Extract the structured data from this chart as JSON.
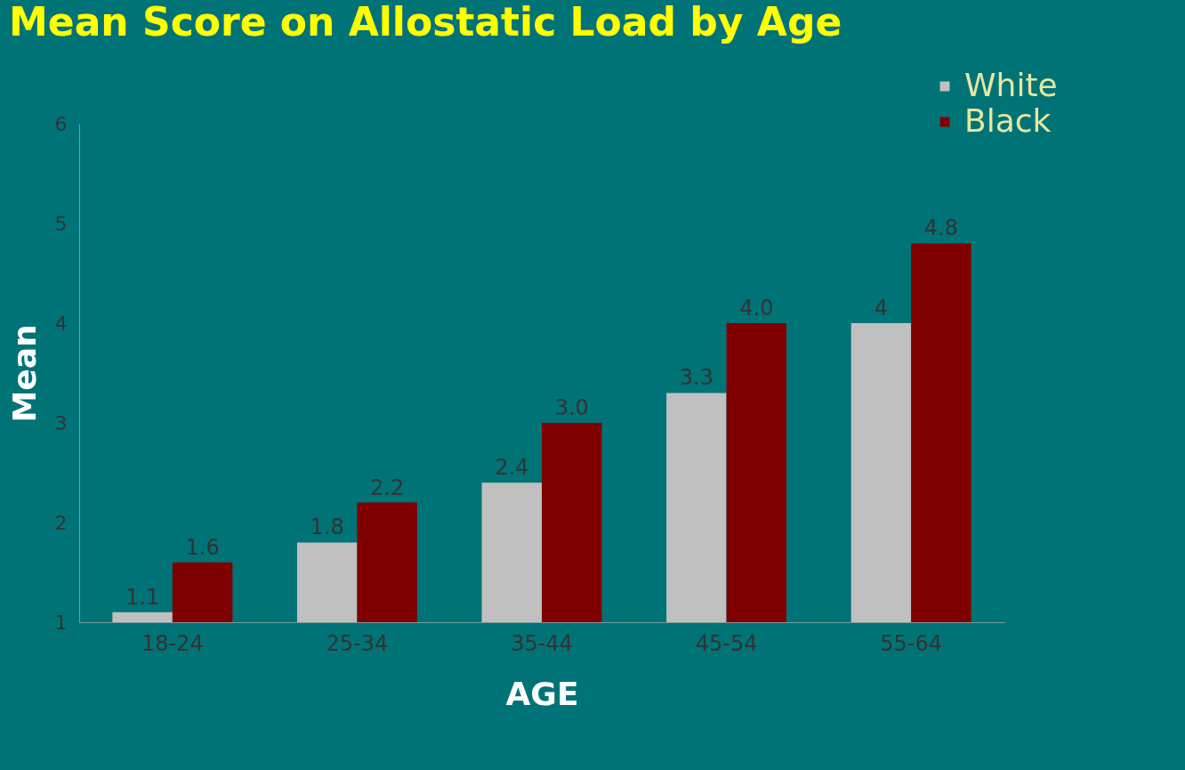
{
  "chart_data": {
    "type": "bar",
    "title": "Mean Score on Allostatic Load by Age",
    "xlabel": "AGE",
    "ylabel": "Mean",
    "categories": [
      "18-24",
      "25-34",
      "35-44",
      "45-54",
      "55-64"
    ],
    "series": [
      {
        "name": "White",
        "color": "#c0c0c0",
        "values": [
          1.1,
          1.8,
          2.4,
          3.3,
          4
        ],
        "value_labels": [
          "1.1",
          "1.8",
          "2.4",
          "3.3",
          "4"
        ]
      },
      {
        "name": "Black",
        "color": "#800000",
        "values": [
          1.6,
          2.2,
          3.0,
          4.0,
          4.8
        ],
        "value_labels": [
          "1.6",
          "2.2",
          "3.0",
          "4.0",
          "4.8"
        ]
      }
    ],
    "ylim": [
      1,
      6
    ],
    "yticks": [
      1,
      2,
      3,
      4,
      5,
      6
    ],
    "grid": false,
    "legend": "top right"
  }
}
